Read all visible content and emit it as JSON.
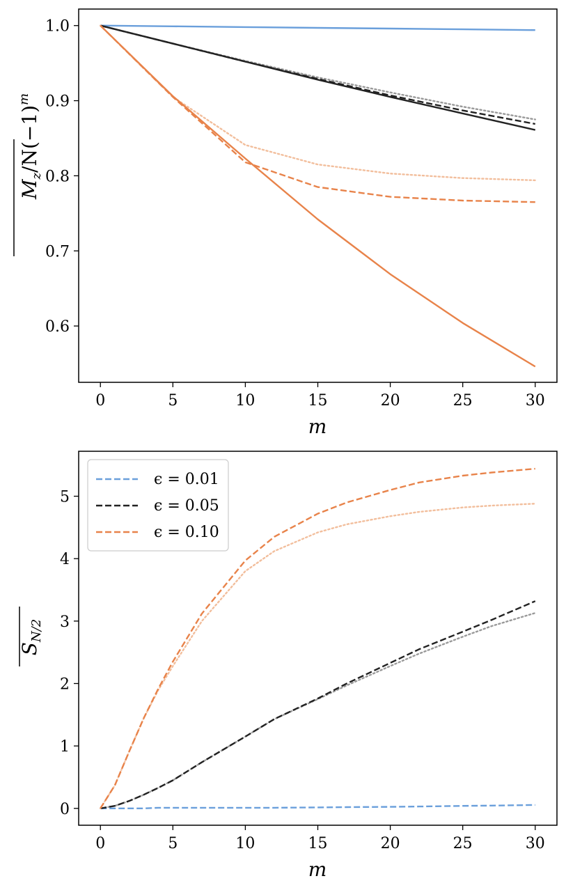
{
  "colors": {
    "blue": "#6a9fdb",
    "black": "#222222",
    "orange": "#e8834a",
    "black_faded": "#999999",
    "orange_faded": "#f2be9c"
  },
  "chart_data": [
    {
      "type": "line",
      "title": "",
      "xlabel": "m",
      "ylabel": "M_z/N(-1)^m (overline)",
      "ylabel_main": "M",
      "ylabel_sub": "z",
      "ylabel_rest": "/N(−1)",
      "ylabel_sup": "m",
      "xlim": [
        -1.5,
        31.5
      ],
      "ylim": [
        0.525,
        1.022
      ],
      "xticks": [
        0,
        5,
        10,
        15,
        20,
        25,
        30
      ],
      "xtick_labels": [
        "0",
        "5",
        "10",
        "15",
        "20",
        "25",
        "30"
      ],
      "yticks": [
        0.6,
        0.7,
        0.8,
        0.9,
        1.0
      ],
      "ytick_labels": [
        "0.6",
        "0.7",
        "0.8",
        "0.9",
        "1.0"
      ],
      "x": [
        0,
        5,
        10,
        15,
        20,
        25,
        30
      ],
      "series": [
        {
          "name": "ε = 0.01 solid",
          "color_key": "blue",
          "style": "solid",
          "values": [
            1.0,
            0.999,
            0.998,
            0.997,
            0.996,
            0.995,
            0.994
          ]
        },
        {
          "name": "ε = 0.05 dotted",
          "color_key": "black_faded",
          "style": "dotted",
          "values": [
            1.0,
            0.976,
            0.953,
            0.931,
            0.911,
            0.892,
            0.875
          ]
        },
        {
          "name": "ε = 0.05 dashed",
          "color_key": "black",
          "style": "dashed",
          "values": [
            1.0,
            0.976,
            0.952,
            0.929,
            0.907,
            0.887,
            0.869
          ]
        },
        {
          "name": "ε = 0.05 solid",
          "color_key": "black",
          "style": "solid",
          "values": [
            1.0,
            0.976,
            0.952,
            0.928,
            0.905,
            0.883,
            0.861
          ]
        },
        {
          "name": "ε = 0.10 dotted",
          "color_key": "orange_faded",
          "style": "dotted",
          "values": [
            1.0,
            0.905,
            0.841,
            0.815,
            0.803,
            0.797,
            0.794
          ]
        },
        {
          "name": "ε = 0.10 dashed",
          "color_key": "orange",
          "style": "dashed",
          "values": [
            1.0,
            0.905,
            0.818,
            0.785,
            0.772,
            0.767,
            0.765
          ]
        },
        {
          "name": "ε = 0.10 solid",
          "color_key": "orange",
          "style": "solid",
          "values": [
            1.0,
            0.906,
            0.823,
            0.742,
            0.669,
            0.604,
            0.546
          ]
        }
      ]
    },
    {
      "type": "line",
      "title": "",
      "xlabel": "m",
      "ylabel": "S_{N/2} (overline)",
      "ylabel_main": "S",
      "ylabel_sub": "N/2",
      "xlim": [
        -1.5,
        31.5
      ],
      "ylim": [
        -0.27,
        5.72
      ],
      "xticks": [
        0,
        5,
        10,
        15,
        20,
        25,
        30
      ],
      "xtick_labels": [
        "0",
        "5",
        "10",
        "15",
        "20",
        "25",
        "30"
      ],
      "yticks": [
        0,
        1,
        2,
        3,
        4,
        5
      ],
      "ytick_labels": [
        "0",
        "1",
        "2",
        "3",
        "4",
        "5"
      ],
      "x": [
        0,
        1,
        2,
        3,
        4,
        5,
        7,
        10,
        12,
        15,
        17,
        20,
        22,
        25,
        27,
        30
      ],
      "legend": {
        "placement": "top-left",
        "entries": [
          {
            "label": "ϵ = 0.01",
            "color_key": "blue"
          },
          {
            "label": "ϵ = 0.05",
            "color_key": "black"
          },
          {
            "label": "ϵ = 0.10",
            "color_key": "orange"
          }
        ]
      },
      "series": [
        {
          "name": "ϵ = 0.01 dashed",
          "color_key": "blue",
          "style": "dashed",
          "values": [
            0.0,
            0.0,
            0.0,
            0.0,
            0.01,
            0.01,
            0.01,
            0.01,
            0.01,
            0.015,
            0.02,
            0.025,
            0.03,
            0.04,
            0.045,
            0.055
          ]
        },
        {
          "name": "ϵ = 0.05 dotted",
          "color_key": "black_faded",
          "style": "dotted",
          "values": [
            0.0,
            0.04,
            0.12,
            0.22,
            0.33,
            0.45,
            0.74,
            1.15,
            1.43,
            1.75,
            1.97,
            2.28,
            2.48,
            2.75,
            2.92,
            3.13
          ]
        },
        {
          "name": "ϵ = 0.05 dashed",
          "color_key": "black",
          "style": "dashed",
          "values": [
            0.0,
            0.04,
            0.12,
            0.22,
            0.33,
            0.45,
            0.74,
            1.15,
            1.43,
            1.76,
            2.0,
            2.33,
            2.55,
            2.83,
            3.02,
            3.32
          ]
        },
        {
          "name": "ϵ = 0.10 dotted",
          "color_key": "orange_faded",
          "style": "dotted",
          "values": [
            0.0,
            0.37,
            0.92,
            1.45,
            1.9,
            2.28,
            3.0,
            3.8,
            4.12,
            4.42,
            4.55,
            4.68,
            4.75,
            4.82,
            4.85,
            4.88
          ]
        },
        {
          "name": "ϵ = 0.10 dashed",
          "color_key": "orange",
          "style": "dashed",
          "values": [
            0.0,
            0.37,
            0.92,
            1.45,
            1.92,
            2.35,
            3.12,
            3.97,
            4.35,
            4.72,
            4.9,
            5.1,
            5.22,
            5.33,
            5.38,
            5.44
          ]
        }
      ]
    }
  ]
}
